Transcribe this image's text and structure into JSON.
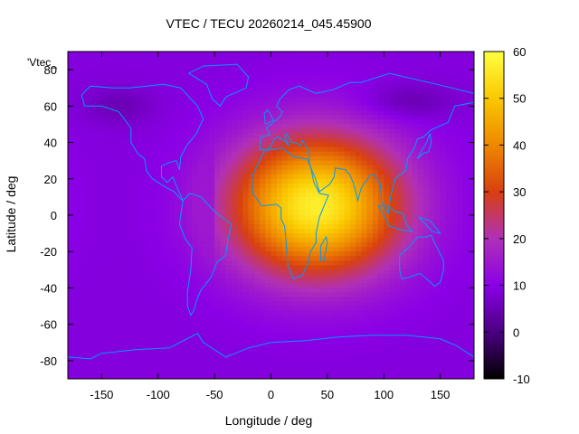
{
  "chart_data": {
    "type": "heatmap",
    "title": "VTEC / TECU 20260214_045.45900",
    "xlabel": "Longitude / deg",
    "ylabel": "Latitude / deg",
    "key_label": "'Vtec_",
    "xlim": [
      -180,
      180
    ],
    "ylim": [
      -90,
      90
    ],
    "xticks": [
      -150,
      -100,
      -50,
      0,
      50,
      100,
      150
    ],
    "yticks": [
      -80,
      -60,
      -40,
      -20,
      0,
      20,
      40,
      60,
      80
    ],
    "xtick_labels": [
      "-150",
      "-100",
      "-50",
      "0",
      "50",
      "100",
      "150"
    ],
    "ytick_labels": [
      "-80",
      "-60",
      "-40",
      "-20",
      "0",
      "20",
      "40",
      "60",
      "80"
    ],
    "colorbar": {
      "range": [
        -10,
        60
      ],
      "ticks": [
        -10,
        0,
        10,
        20,
        30,
        40,
        50,
        60
      ],
      "tick_labels": [
        "-10",
        "0",
        "10",
        "20",
        "30",
        "40",
        "50",
        "60"
      ],
      "colormap": [
        "#000000",
        "#4b0082",
        "#8a00e6",
        "#b030b8",
        "#d84010",
        "#ee8800",
        "#fac800",
        "#ffff40"
      ]
    },
    "field": {
      "background_tecu": 9,
      "peak_tecu": 57,
      "peak_lon": 40,
      "peak_lat": 5,
      "terminator_lon": -52,
      "description_note": ""
    },
    "coastline_color": "#0099ff"
  }
}
